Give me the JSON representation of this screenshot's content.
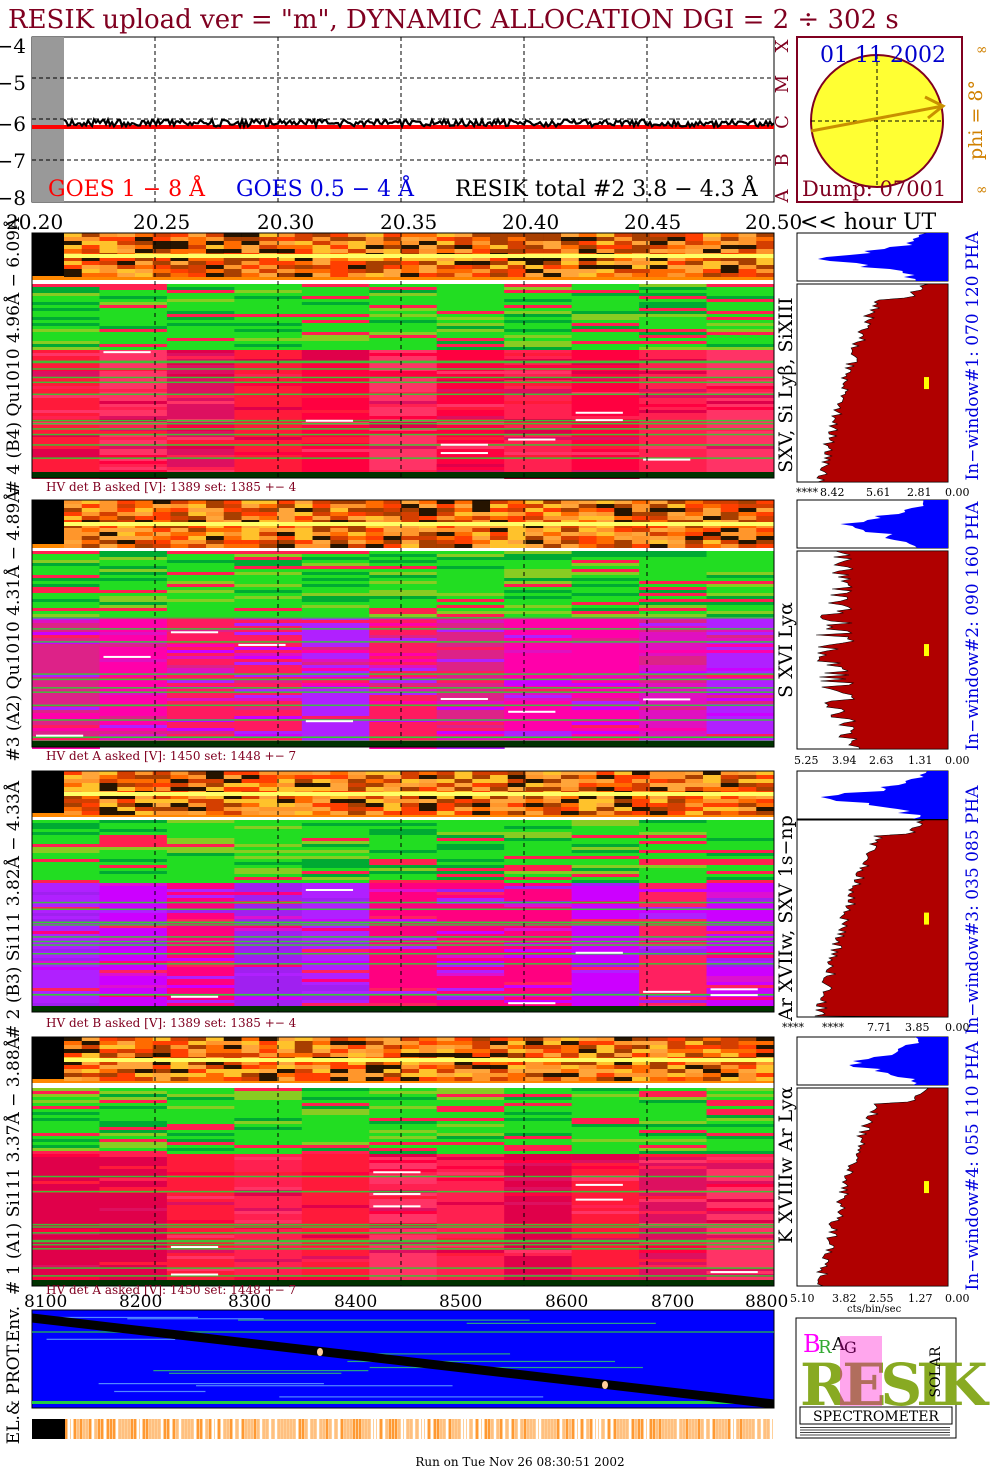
{
  "title": "RESIK upload ver = \"m\", DYNAMIC ALLOCATION  DGI =   2 ÷ 302 s",
  "footer": "Run on Tue Nov 26 08:30:51 2002",
  "colors": {
    "title": "#800020",
    "goes1": "#ff0000",
    "goes2": "#0000dd",
    "resik": "#000000",
    "sun": "#ffff33",
    "orbit": "#0000cc",
    "hist": "#b00000",
    "pha_blue": "#0000ff",
    "stats": "#d08000"
  },
  "lightcurve": {
    "ylabels": [
      "−4",
      "−5",
      "−6",
      "−7",
      "−8"
    ],
    "classes": [
      "X",
      "M",
      "C",
      "B",
      "A"
    ],
    "legend": {
      "goes1": "GOES 1 − 8 Å",
      "goes2": "GOES 0.5 − 4 Å",
      "resik": "RESIK total #2  3.8 − 4.3 Å"
    }
  },
  "time_axis": {
    "ticks": [
      "20.20",
      "20.25",
      "20.30",
      "20.35",
      "20.40",
      "20.45",
      "20.50"
    ],
    "unit_label": "<< hour UT"
  },
  "sun": {
    "date": "01 11 2002",
    "dump": "Dump: 07001",
    "phi": "phi =  8°",
    "side_marks": [
      "∞",
      "∞"
    ]
  },
  "panels": [
    {
      "name": "panel-4",
      "ylabel": "# 4 (B4) Qu1010 4.96Å − 6.09Å",
      "lines": "SXV, Si Lyβ, SiXIII",
      "hv": "HV det B asked [V]:  1389 set:  1385 +−    4",
      "pha": "In−window#1:  070 120 PHA",
      "hist_ticks": [
        "****",
        "8.42",
        "5.61",
        "2.81",
        "0.00"
      ]
    },
    {
      "name": "panel-3",
      "ylabel": "#3 (A2) Qu1010  4.31Å − 4.89Å",
      "lines": "S XVI Lyα",
      "hv": "HV det A asked [V]:  1450 set:  1448 +−    7",
      "pha": "In−window#2:  090 160 PHA",
      "hist_ticks": [
        "5.25",
        "3.94",
        "2.63",
        "1.31",
        "0.00"
      ]
    },
    {
      "name": "panel-2",
      "ylabel": "# 2 (B3) Si111  3.82Å − 4.33Å",
      "lines": "Ar XVIIw,  SXV 1s−np",
      "hv": "HV det B asked [V]:  1389 set:  1385 +−    4",
      "pha": "In−window#3:  035 085 PHA",
      "hist_ticks": [
        "****",
        "****",
        "7.71",
        "3.85",
        "0.00"
      ]
    },
    {
      "name": "panel-1",
      "ylabel": "# 1 (A1) Si111  3.37Å − 3.88Å",
      "lines": "K XVIIIw  Ar Lyα",
      "hv": "HV det A asked [V]:  1450 set:  1448 +−    7",
      "pha": "In−window#4:  055 110 PHA",
      "hist_ticks": [
        "5.10",
        "3.82",
        "2.55",
        "1.27",
        "0.00"
      ],
      "hist_unit": "cts/bin/sec"
    }
  ],
  "orbit": {
    "ylabel": "EL.& PROT.Env.",
    "ticks": [
      "8100",
      "8200",
      "8300",
      "8400",
      "8500",
      "8600",
      "8700",
      "8800"
    ]
  },
  "logo": {
    "letters": "RESIK",
    "b": "B",
    "r": "R",
    "a": "A",
    "g": "G",
    "solar": "SOLAR",
    "label": "SPECTROMETER"
  }
}
